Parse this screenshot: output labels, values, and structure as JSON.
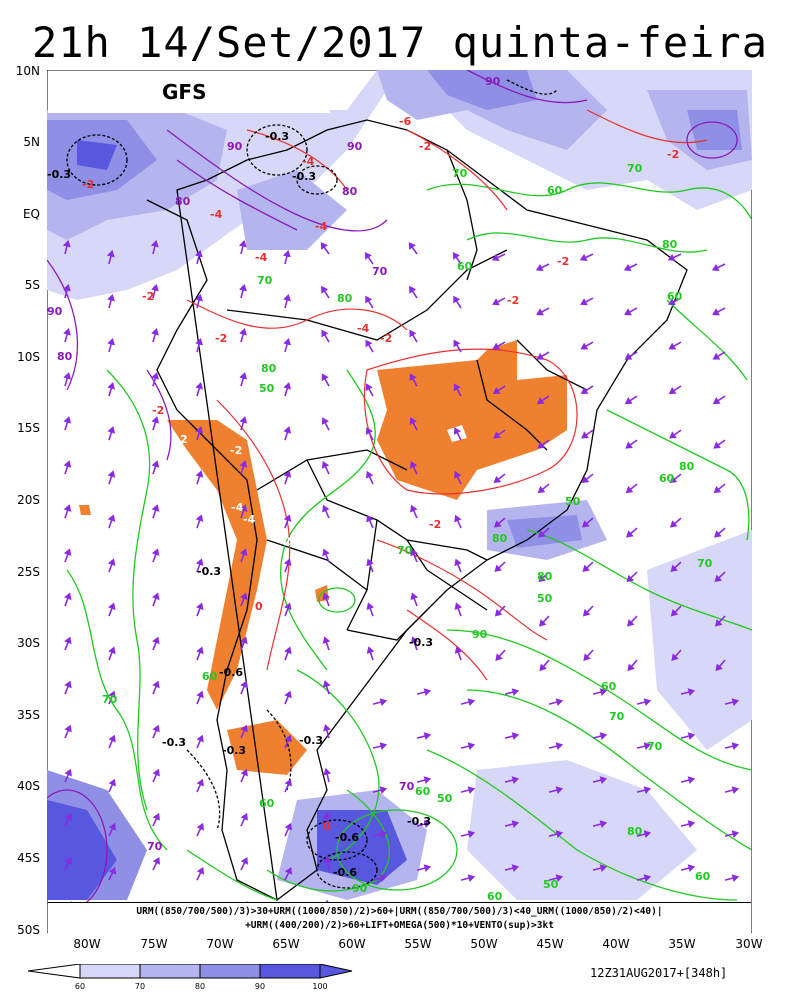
{
  "title": "21h 14/Set/2017 quinta-feira",
  "model": "GFS",
  "lat_labels": [
    "10N",
    "5N",
    "EQ",
    "5S",
    "10S",
    "15S",
    "20S",
    "25S",
    "30S",
    "35S",
    "40S",
    "45S",
    "50S"
  ],
  "lon_labels": [
    "80W",
    "75W",
    "70W",
    "65W",
    "60W",
    "55W",
    "50W",
    "45W",
    "40W",
    "35W",
    "30W"
  ],
  "formula_line1": "URM((850/700/500)/3)>30+URM((1000/850)/2)>60+|URM((850/700/500)/3)<40_URM((1000/850)/2)<40)|",
  "formula_line2": "+URM((400/200)/2)>60+LIFT+OMEGA(500)*10+VENTO(sup)>3kt",
  "colorbar": {
    "ticks": [
      "60",
      "70",
      "80",
      "90",
      "100"
    ],
    "colors": [
      "#d7d7f7",
      "#b4b4ef",
      "#8f8fe6",
      "#5757e0"
    ]
  },
  "run_info": "12Z31AUG2017+[348h]",
  "colors": {
    "humidity_light": "#d7d7f7",
    "humidity_mid": "#b4b4ef",
    "humidity_dark": "#8f8fe6",
    "humidity_deep": "#5757e0",
    "lift_fill": "#ee8030",
    "lift_contour": "#e83030",
    "rh_contour": "#22c822",
    "upper_contour": "#8a1ab8",
    "vector": "#8a2be2",
    "omega": "#000000",
    "borders": "#000000"
  },
  "contour_labels": {
    "rh_green": [
      "60",
      "70",
      "80",
      "90",
      "50"
    ],
    "omega": [
      "-0.3",
      "-0.6"
    ],
    "lift": [
      "-2",
      "-4",
      "-6",
      "0",
      "2"
    ],
    "upper_purple": [
      "70",
      "80",
      "90"
    ]
  }
}
